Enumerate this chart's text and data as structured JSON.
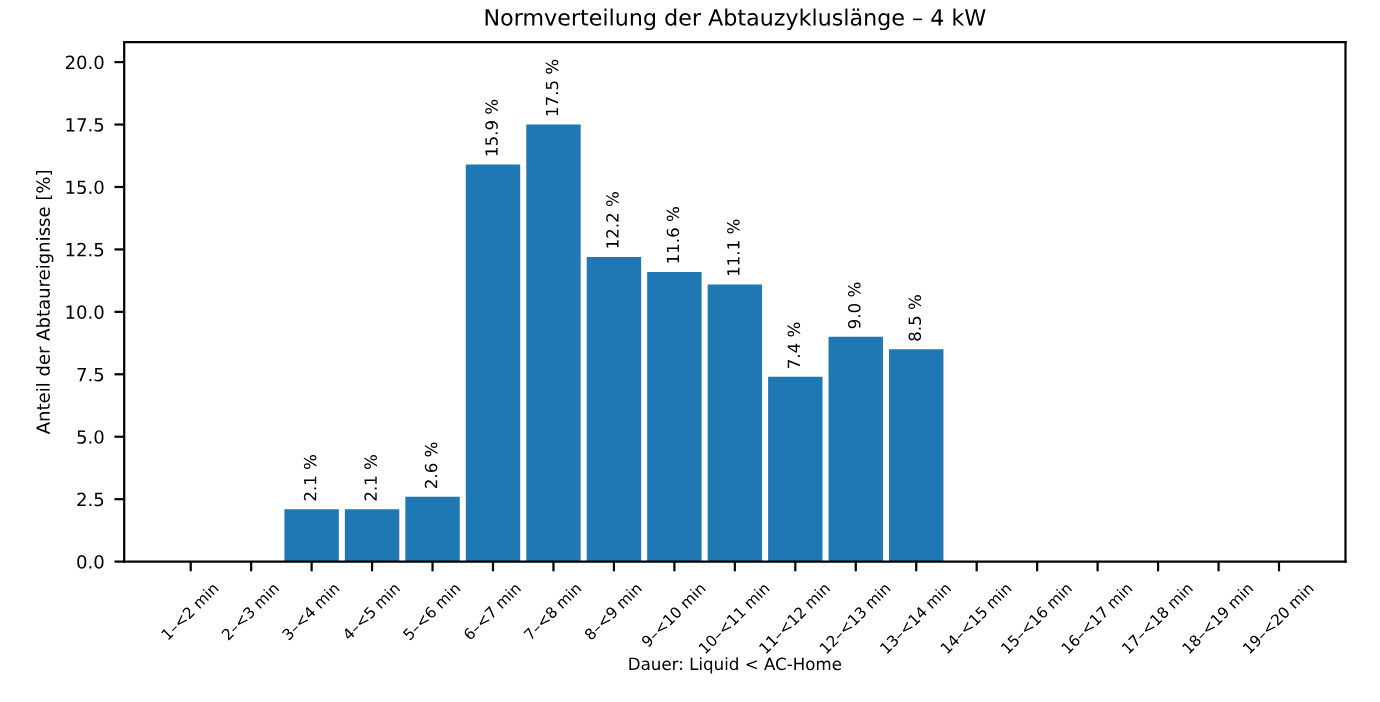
{
  "chart_data": {
    "type": "bar",
    "title": "Normverteilung der Abtauzykluslänge – 4 kW",
    "xlabel": "Dauer: Liquid < AC-Home",
    "ylabel": "Anteil der Abtaureignisse [%]",
    "categories": [
      "1–<2 min",
      "2–<3 min",
      "3–<4 min",
      "4–<5 min",
      "5–<6 min",
      "6–<7 min",
      "7–<8 min",
      "8–<9 min",
      "9–<10 min",
      "10–<11 min",
      "11–<12 min",
      "12–<13 min",
      "13–<14 min",
      "14–<15 min",
      "15–<16 min",
      "16–<17 min",
      "17–<18 min",
      "18–<19 min",
      "19–<20 min"
    ],
    "values": [
      0,
      0,
      2.1,
      2.1,
      2.6,
      15.9,
      17.5,
      12.2,
      11.6,
      11.1,
      7.4,
      9.0,
      8.5,
      0,
      0,
      0,
      0,
      0,
      0
    ],
    "value_labels": [
      null,
      null,
      "2.1 %",
      "2.1 %",
      "2.6 %",
      "15.9 %",
      "17.5 %",
      "12.2 %",
      "11.6 %",
      "11.1 %",
      "7.4 %",
      "9.0 %",
      "8.5 %",
      null,
      null,
      null,
      null,
      null,
      null
    ],
    "color": "#1f77b4",
    "ylim": [
      0,
      20.8
    ],
    "yticks": [
      {
        "value": 0,
        "label": "0.0"
      },
      {
        "value": 2.5,
        "label": "2.5"
      },
      {
        "value": 5,
        "label": "5.0"
      },
      {
        "value": 7.5,
        "label": "7.5"
      },
      {
        "value": 10,
        "label": "10.0"
      },
      {
        "value": 12.5,
        "label": "12.5"
      },
      {
        "value": 15,
        "label": "15.0"
      },
      {
        "value": 17.5,
        "label": "17.5"
      },
      {
        "value": 20,
        "label": "20.0"
      }
    ],
    "grid": false,
    "legend": false
  }
}
